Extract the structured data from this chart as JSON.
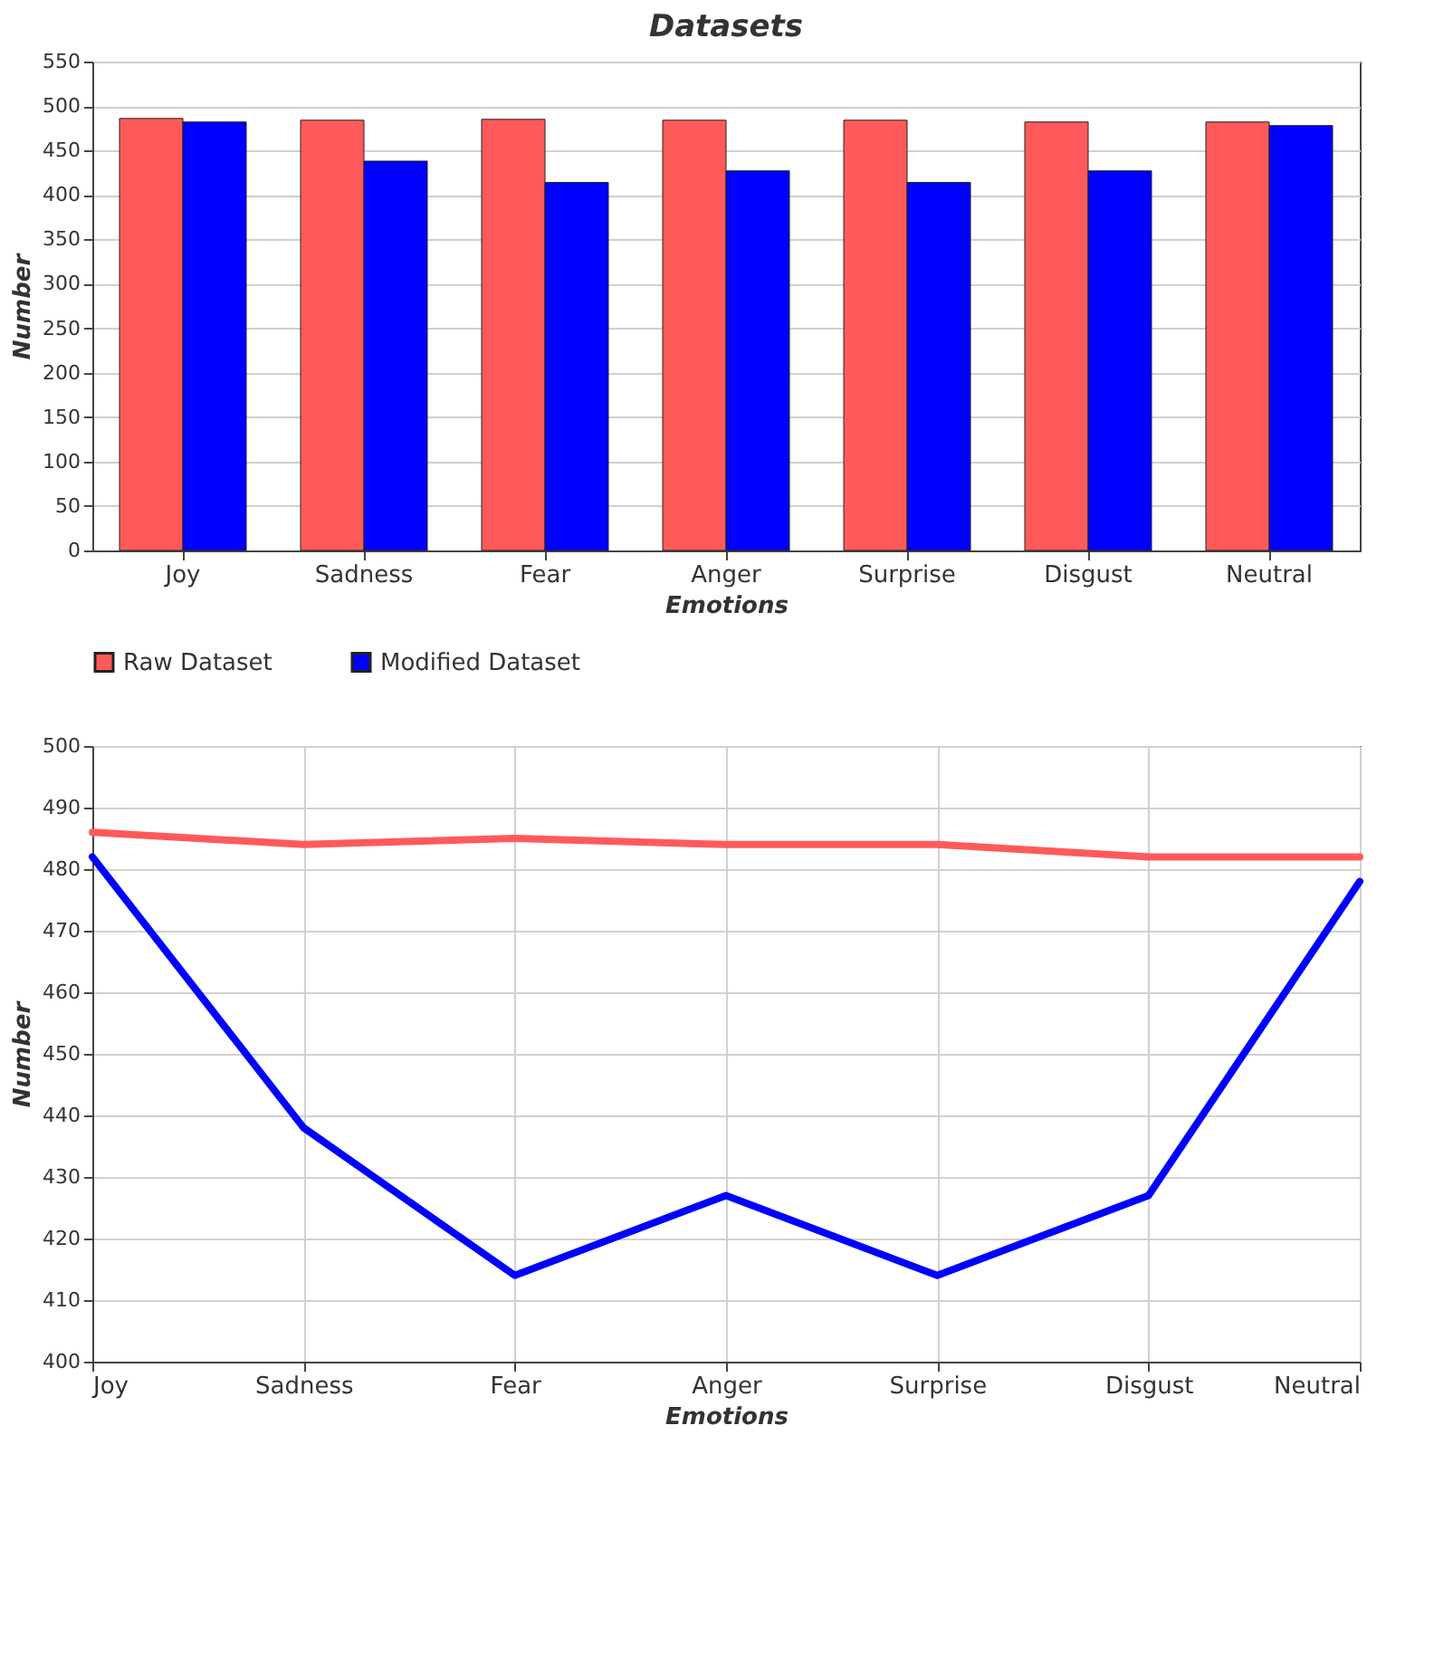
{
  "chart_data": [
    {
      "type": "bar",
      "title": "Datasets",
      "xlabel": "Emotions",
      "ylabel": "Number",
      "categories": [
        "Joy",
        "Sadness",
        "Fear",
        "Anger",
        "Surprise",
        "Disgust",
        "Neutral"
      ],
      "series": [
        {
          "name": "Raw Dataset",
          "color": "#ff5a5a",
          "values": [
            486,
            484,
            485,
            484,
            484,
            482,
            482
          ]
        },
        {
          "name": "Modified Dataset",
          "color": "#0000ff",
          "values": [
            482,
            438,
            414,
            427,
            414,
            427,
            478
          ]
        }
      ],
      "ylim": [
        0,
        550
      ],
      "yticks": [
        0,
        50,
        100,
        150,
        200,
        250,
        300,
        350,
        400,
        450,
        500,
        550
      ],
      "grid": "y",
      "legend": "bottom left"
    },
    {
      "type": "line",
      "xlabel": "Emotions",
      "ylabel": "Number",
      "categories": [
        "Joy",
        "Sadness",
        "Fear",
        "Anger",
        "Surprise",
        "Disgust",
        "Neutral"
      ],
      "series": [
        {
          "color": "#ff5a5a",
          "values": [
            486,
            484,
            485,
            484,
            484,
            482,
            482
          ]
        },
        {
          "color": "#0000ff",
          "values": [
            482,
            438,
            414,
            427,
            414,
            427,
            478
          ]
        }
      ],
      "ylim": [
        400,
        500
      ],
      "yticks": [
        400,
        410,
        420,
        430,
        440,
        450,
        460,
        470,
        480,
        490,
        500
      ],
      "grid": true,
      "legend": false
    }
  ]
}
